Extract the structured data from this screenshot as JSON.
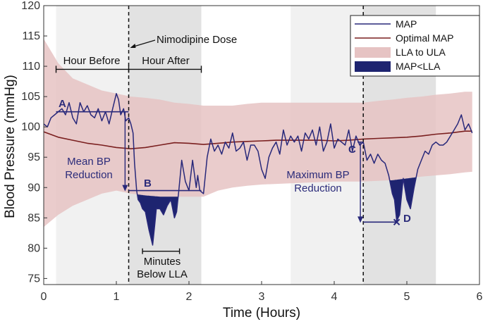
{
  "chart_data": {
    "type": "line",
    "xlabel": "Time (Hours)",
    "ylabel": "Blood Pressure (mmHg)",
    "xlim": [
      0,
      6
    ],
    "ylim": [
      74,
      120
    ],
    "xticks": [
      0,
      1,
      2,
      3,
      4,
      5,
      6
    ],
    "yticks": [
      75,
      80,
      85,
      90,
      95,
      100,
      105,
      110,
      115,
      120
    ],
    "legend": {
      "position": "top-right",
      "entries": [
        {
          "label": "MAP",
          "kind": "line",
          "color": "#28287a"
        },
        {
          "label": "Optimal MAP",
          "kind": "line",
          "color": "#7a1f1f"
        },
        {
          "label": "LLA to ULA",
          "kind": "patch",
          "color": "#e6c3c3"
        },
        {
          "label": "MAP<LLA",
          "kind": "patch",
          "color": "#1e2470"
        }
      ]
    },
    "shaded_windows": [
      {
        "x0": 0.17,
        "x1": 1.17,
        "color": "#f1f1f1"
      },
      {
        "x0": 1.17,
        "x1": 2.17,
        "color": "#e2e2e2"
      },
      {
        "x0": 3.4,
        "x1": 4.4,
        "color": "#f1f1f1"
      },
      {
        "x0": 4.4,
        "x1": 5.4,
        "color": "#e2e2e2"
      }
    ],
    "dashed_vlines": [
      1.17,
      4.4
    ],
    "series": [
      {
        "name": "MAP",
        "color": "#28287a",
        "x": [
          0.0,
          0.05,
          0.1,
          0.15,
          0.2,
          0.25,
          0.3,
          0.35,
          0.4,
          0.45,
          0.5,
          0.55,
          0.6,
          0.65,
          0.7,
          0.75,
          0.8,
          0.85,
          0.9,
          0.95,
          1.0,
          1.03,
          1.06,
          1.1,
          1.13,
          1.17,
          1.2,
          1.23,
          1.25,
          1.28,
          1.3,
          1.33,
          1.36,
          1.4,
          1.45,
          1.5,
          1.53,
          1.55,
          1.6,
          1.65,
          1.7,
          1.75,
          1.8,
          1.83,
          1.86,
          1.9,
          1.95,
          2.0,
          2.05,
          2.1,
          2.12,
          2.15,
          2.2,
          2.25,
          2.3,
          2.35,
          2.4,
          2.45,
          2.5,
          2.55,
          2.6,
          2.65,
          2.7,
          2.75,
          2.8,
          2.85,
          2.9,
          2.95,
          3.0,
          3.05,
          3.1,
          3.15,
          3.2,
          3.25,
          3.3,
          3.35,
          3.4,
          3.45,
          3.5,
          3.55,
          3.6,
          3.65,
          3.7,
          3.75,
          3.8,
          3.85,
          3.9,
          3.95,
          4.0,
          4.05,
          4.1,
          4.15,
          4.2,
          4.25,
          4.3,
          4.35,
          4.4,
          4.45,
          4.5,
          4.55,
          4.6,
          4.65,
          4.7,
          4.75,
          4.8,
          4.83,
          4.86,
          4.9,
          4.95,
          5.0,
          5.05,
          5.1,
          5.15,
          5.2,
          5.25,
          5.3,
          5.35,
          5.4,
          5.45,
          5.5,
          5.55,
          5.6,
          5.65,
          5.7,
          5.75,
          5.8,
          5.85,
          5.9
        ],
        "y": [
          100.5,
          100.0,
          101.5,
          102.0,
          102.5,
          103.0,
          102.0,
          104.0,
          101.5,
          100.5,
          104.0,
          102.5,
          103.5,
          102.0,
          101.5,
          103.0,
          101.0,
          102.5,
          100.5,
          103.0,
          105.5,
          104.5,
          102.0,
          103.0,
          101.0,
          101.5,
          100.5,
          99.0,
          94.0,
          89.5,
          88.0,
          87.5,
          86.5,
          86.0,
          83.0,
          80.5,
          84.0,
          86.5,
          86.5,
          85.5,
          87.0,
          88.0,
          85.0,
          86.0,
          89.5,
          94.5,
          91.0,
          89.5,
          94.5,
          90.0,
          92.0,
          89.5,
          89.0,
          95.0,
          98.0,
          96.0,
          97.0,
          95.5,
          97.5,
          96.5,
          99.0,
          96.0,
          96.5,
          97.5,
          94.5,
          97.0,
          97.0,
          96.0,
          93.0,
          91.5,
          95.0,
          96.5,
          97.5,
          95.5,
          99.5,
          97.0,
          98.5,
          97.5,
          98.5,
          96.0,
          99.0,
          98.0,
          99.5,
          97.0,
          100.0,
          96.0,
          97.5,
          100.5,
          96.5,
          98.0,
          97.5,
          97.0,
          99.5,
          96.0,
          98.5,
          97.0,
          97.5,
          94.5,
          95.5,
          94.0,
          95.5,
          94.5,
          94.0,
          92.0,
          89.0,
          88.0,
          84.5,
          85.5,
          91.5,
          88.0,
          86.5,
          90.0,
          93.0,
          94.5,
          96.0,
          95.5,
          97.0,
          97.5,
          97.0,
          97.0,
          97.5,
          98.5,
          99.5,
          100.5,
          102.0,
          99.5,
          100.5,
          99.0
        ]
      },
      {
        "name": "Optimal MAP",
        "color": "#7a1f1f",
        "x": [
          0.0,
          0.2,
          0.4,
          0.6,
          0.8,
          1.0,
          1.2,
          1.4,
          1.6,
          1.8,
          2.0,
          2.2,
          2.4,
          2.6,
          2.8,
          3.0,
          3.2,
          3.4,
          3.6,
          3.8,
          4.0,
          4.2,
          4.4,
          4.6,
          4.8,
          5.0,
          5.2,
          5.4,
          5.6,
          5.8,
          5.9
        ],
        "y": [
          99.2,
          98.3,
          97.8,
          97.3,
          97.0,
          96.6,
          96.4,
          96.6,
          97.0,
          97.4,
          97.3,
          97.1,
          97.3,
          97.5,
          97.6,
          97.7,
          97.8,
          97.8,
          97.8,
          97.8,
          97.7,
          97.8,
          98.0,
          98.1,
          98.2,
          98.3,
          98.5,
          98.8,
          99.0,
          99.3,
          99.3
        ]
      }
    ],
    "band": {
      "name": "LLA to ULA",
      "x": [
        0.0,
        0.2,
        0.4,
        0.6,
        0.8,
        1.0,
        1.2,
        1.4,
        1.6,
        1.8,
        2.0,
        2.2,
        2.4,
        2.6,
        2.8,
        3.0,
        3.2,
        3.4,
        3.6,
        3.8,
        4.0,
        4.2,
        4.4,
        4.6,
        4.8,
        5.0,
        5.2,
        5.4,
        5.6,
        5.8,
        5.9
      ],
      "upper": [
        114.5,
        110.5,
        108.0,
        107.0,
        106.0,
        105.5,
        105.0,
        104.8,
        104.5,
        104.0,
        103.8,
        103.5,
        103.5,
        103.5,
        103.8,
        104.0,
        104.0,
        104.0,
        104.0,
        104.0,
        104.0,
        104.0,
        104.0,
        104.3,
        104.5,
        104.8,
        105.0,
        105.3,
        105.5,
        105.8,
        105.8
      ],
      "lower": [
        83.5,
        85.5,
        87.0,
        88.0,
        89.0,
        89.5,
        89.0,
        88.7,
        88.5,
        88.5,
        88.5,
        88.5,
        89.5,
        90.0,
        90.3,
        90.5,
        90.6,
        90.7,
        90.8,
        90.9,
        91.0,
        91.0,
        91.0,
        91.1,
        91.2,
        91.5,
        91.8,
        92.0,
        92.2,
        92.5,
        92.6
      ]
    },
    "annotations": {
      "nimodipine": "Nimodipine Dose",
      "hour_before": "Hour Before",
      "hour_after": "Hour After",
      "mean_bp_line1": "Mean BP",
      "mean_bp_line2": "Reduction",
      "max_bp_line1": "Maximum BP",
      "max_bp_line2": "Reduction",
      "minutes_line1": "Minutes",
      "minutes_line2": "Below LLA",
      "point_a": "A",
      "point_b": "B",
      "point_c": "C",
      "point_d": "D",
      "level_a": 102.5,
      "level_b": 89.5,
      "level_c": 97.5,
      "level_d": 84.3,
      "level_hour_bracket": 109.5,
      "minutes_bracket_x": [
        1.36,
        1.87
      ],
      "minutes_bracket_y": 79.5
    }
  }
}
